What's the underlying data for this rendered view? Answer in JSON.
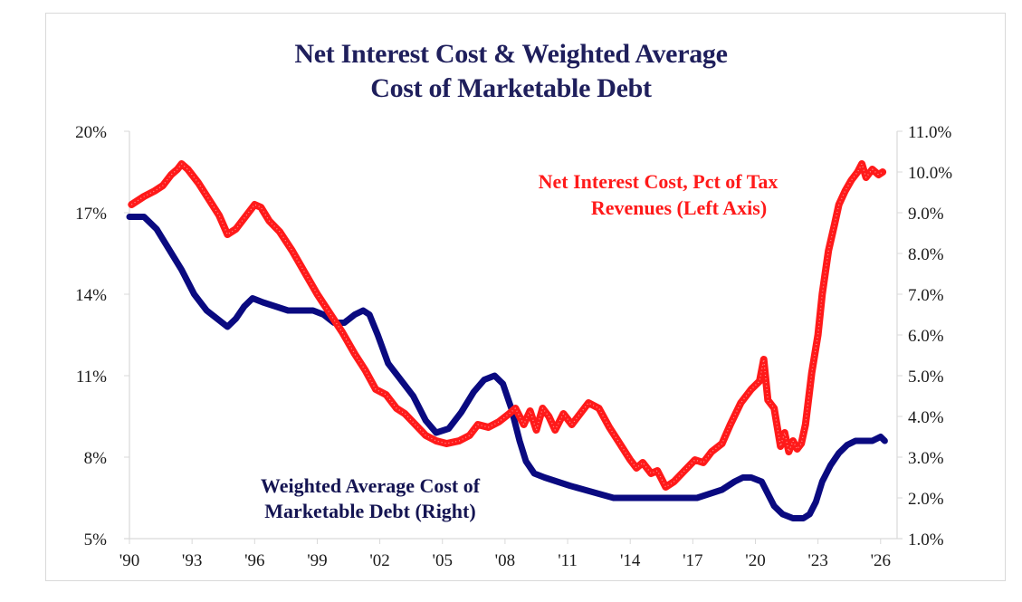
{
  "chart_data": {
    "type": "line",
    "title": "Net Interest Cost & Weighted Average Cost of Marketable Debt",
    "title_lines": [
      "Net Interest Cost & Weighted Average",
      "Cost of Marketable Debt"
    ],
    "xlabel": "",
    "ylabel_left": "",
    "ylabel_right": "",
    "x_range": [
      1990,
      2026.4
    ],
    "x_ticks": [
      1990,
      1993,
      1996,
      1999,
      2002,
      2005,
      2008,
      2011,
      2014,
      2017,
      2020,
      2023,
      2026
    ],
    "x_tick_labels": [
      "'90",
      "'93",
      "'96",
      "'99",
      "'02",
      "'05",
      "'08",
      "'11",
      "'14",
      "'17",
      "'20",
      "'23",
      "'26"
    ],
    "ylim_left": [
      5,
      20
    ],
    "y_ticks_left": [
      5,
      8,
      11,
      14,
      17,
      20
    ],
    "y_tick_labels_left": [
      "5%",
      "8%",
      "11%",
      "14%",
      "17%",
      "20%"
    ],
    "ylim_right": [
      1.0,
      11.0
    ],
    "y_ticks_right": [
      1,
      2,
      3,
      4,
      5,
      6,
      7,
      8,
      9,
      10,
      11
    ],
    "y_tick_labels_right": [
      "1.0%",
      "2.0%",
      "3.0%",
      "4.0%",
      "5.0%",
      "6.0%",
      "7.0%",
      "8.0%",
      "9.0%",
      "10.0%",
      "11.0%"
    ],
    "grid": false,
    "series": [
      {
        "name": "Net Interest Cost, Pct of Tax Revenues (Left Axis)",
        "axis": "left",
        "color": "#ff1a1a",
        "label_lines": [
          "Net Interest Cost, Pct of Tax",
          "Revenues (Left Axis)"
        ],
        "x": [
          1990.1,
          1990.7,
          1991.2,
          1991.6,
          1992.0,
          1992.3,
          1992.5,
          1992.8,
          1993.3,
          1993.8,
          1994.3,
          1994.7,
          1995.1,
          1995.6,
          1996.0,
          1996.3,
          1996.7,
          1997.2,
          1997.8,
          1998.4,
          1999.0,
          1999.6,
          2000.2,
          2000.8,
          2001.3,
          2001.8,
          2002.3,
          2002.8,
          2003.2,
          2003.7,
          2004.2,
          2004.7,
          2005.2,
          2005.8,
          2006.3,
          2006.7,
          2007.2,
          2007.7,
          2008.2,
          2008.5,
          2008.9,
          2009.2,
          2009.5,
          2009.8,
          2010.1,
          2010.4,
          2010.8,
          2011.2,
          2011.6,
          2012.0,
          2012.5,
          2013.0,
          2013.5,
          2014.0,
          2014.3,
          2014.6,
          2015.0,
          2015.3,
          2015.7,
          2016.1,
          2016.6,
          2017.1,
          2017.5,
          2017.9,
          2018.4,
          2018.8,
          2019.3,
          2019.8,
          2020.2,
          2020.4,
          2020.6,
          2020.9,
          2021.2,
          2021.4,
          2021.6,
          2021.8,
          2022.0,
          2022.2,
          2022.4,
          2022.7,
          2023.0,
          2023.2,
          2023.5,
          2023.8,
          2024.0,
          2024.3,
          2024.6,
          2024.9,
          2025.1,
          2025.3,
          2025.6,
          2025.9,
          2026.1
        ],
        "values": [
          17.3,
          17.6,
          17.8,
          18.0,
          18.4,
          18.6,
          18.8,
          18.6,
          18.1,
          17.5,
          16.9,
          16.2,
          16.4,
          16.9,
          17.3,
          17.2,
          16.7,
          16.3,
          15.6,
          14.8,
          14.0,
          13.3,
          12.6,
          11.8,
          11.2,
          10.5,
          10.3,
          9.8,
          9.6,
          9.2,
          8.8,
          8.6,
          8.5,
          8.6,
          8.8,
          9.2,
          9.1,
          9.3,
          9.6,
          9.8,
          9.2,
          9.7,
          9.0,
          9.8,
          9.5,
          9.0,
          9.6,
          9.2,
          9.6,
          10.0,
          9.8,
          9.1,
          8.5,
          7.9,
          7.6,
          7.8,
          7.4,
          7.5,
          6.9,
          7.1,
          7.5,
          7.9,
          7.8,
          8.2,
          8.5,
          9.2,
          10.0,
          10.5,
          10.8,
          11.6,
          10.1,
          9.8,
          8.4,
          8.9,
          8.2,
          8.6,
          8.3,
          8.5,
          9.2,
          11.1,
          12.5,
          14.0,
          15.6,
          16.6,
          17.3,
          17.8,
          18.2,
          18.5,
          18.8,
          18.3,
          18.6,
          18.4,
          18.5
        ]
      },
      {
        "name": "Weighted Average Cost of Marketable Debt (Right)",
        "axis": "right",
        "color": "#0a0a80",
        "label_lines": [
          "Weighted Average Cost of",
          "Marketable Debt (Right)"
        ],
        "x": [
          1990.0,
          1990.7,
          1991.3,
          1991.9,
          1992.5,
          1993.1,
          1993.7,
          1994.2,
          1994.7,
          1995.1,
          1995.5,
          1995.9,
          1996.4,
          1997.0,
          1997.6,
          1998.2,
          1998.8,
          1999.3,
          1999.8,
          2000.3,
          2000.8,
          2001.2,
          2001.5,
          2001.9,
          2002.4,
          2003.0,
          2003.6,
          2004.2,
          2004.7,
          2005.3,
          2005.9,
          2006.5,
          2007.0,
          2007.5,
          2007.9,
          2008.3,
          2008.7,
          2009.0,
          2009.4,
          2009.9,
          2010.5,
          2011.1,
          2011.8,
          2012.5,
          2013.2,
          2013.9,
          2014.5,
          2015.2,
          2015.9,
          2016.6,
          2017.2,
          2017.8,
          2018.4,
          2019.0,
          2019.4,
          2019.8,
          2020.3,
          2020.6,
          2020.9,
          2021.3,
          2021.8,
          2022.3,
          2022.6,
          2022.9,
          2023.2,
          2023.6,
          2024.0,
          2024.4,
          2024.8,
          2025.2,
          2025.6,
          2026.0,
          2026.2
        ],
        "values": [
          8.9,
          8.9,
          8.6,
          8.1,
          7.6,
          7.0,
          6.6,
          6.4,
          6.2,
          6.4,
          6.7,
          6.9,
          6.8,
          6.7,
          6.6,
          6.6,
          6.6,
          6.5,
          6.3,
          6.3,
          6.5,
          6.6,
          6.5,
          6.0,
          5.3,
          4.9,
          4.5,
          3.9,
          3.6,
          3.7,
          4.1,
          4.6,
          4.9,
          5.0,
          4.8,
          4.2,
          3.4,
          2.9,
          2.6,
          2.5,
          2.4,
          2.3,
          2.2,
          2.1,
          2.0,
          2.0,
          2.0,
          2.0,
          2.0,
          2.0,
          2.0,
          2.1,
          2.2,
          2.4,
          2.5,
          2.5,
          2.4,
          2.1,
          1.8,
          1.6,
          1.5,
          1.5,
          1.6,
          1.9,
          2.4,
          2.8,
          3.1,
          3.3,
          3.4,
          3.4,
          3.4,
          3.5,
          3.4
        ]
      }
    ]
  }
}
